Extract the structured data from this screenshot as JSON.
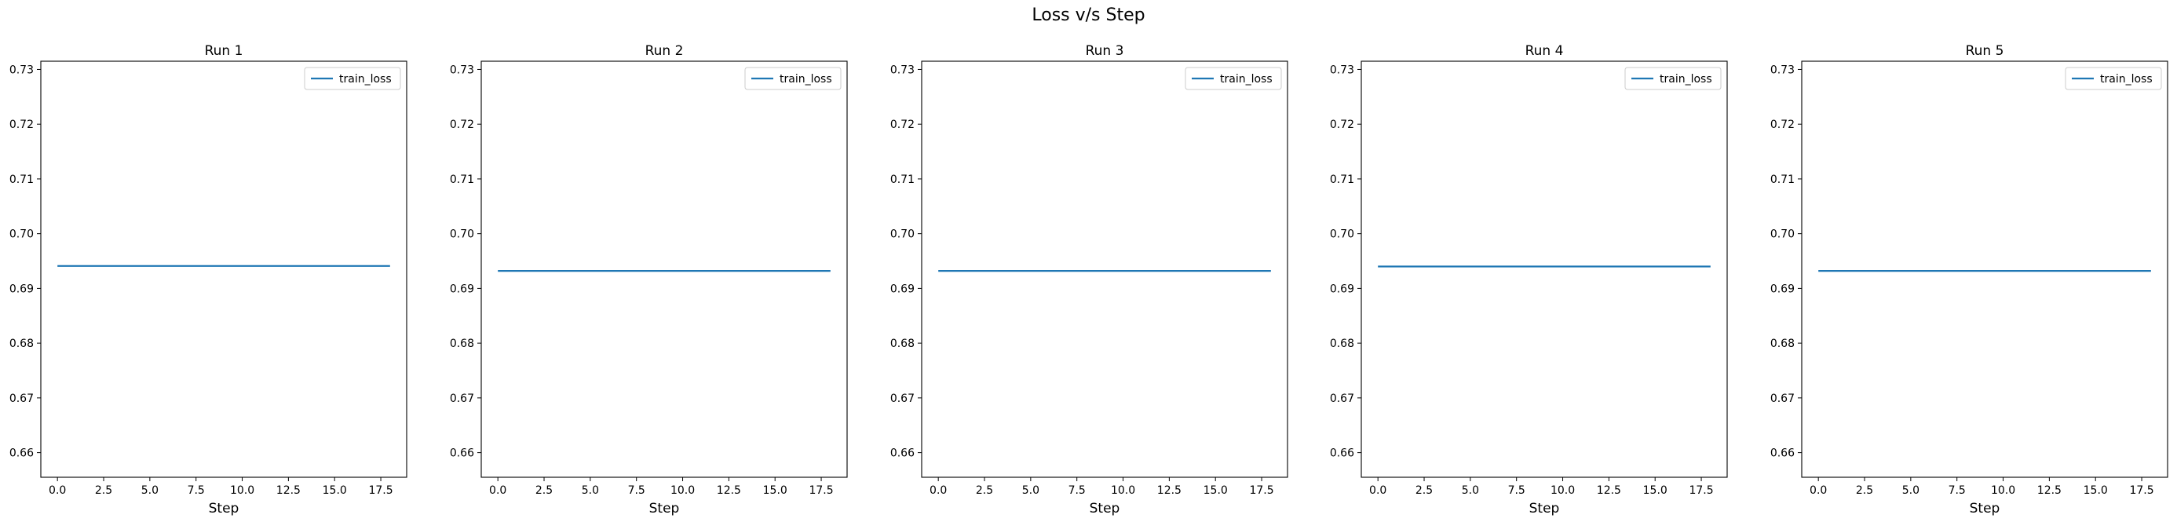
{
  "figure": {
    "title": "Loss v/s Step"
  },
  "colors": {
    "series": "#1f77b4",
    "axes": "#000000",
    "background": "#ffffff",
    "legend_border": "#cccccc"
  },
  "chart_data": [
    {
      "type": "line",
      "title": "Run 1",
      "xlabel": "Step",
      "ylabel": "",
      "xlim": [
        -0.9,
        18.9
      ],
      "ylim": [
        0.6555,
        0.7315
      ],
      "xticks": [
        "0.0",
        "2.5",
        "5.0",
        "7.5",
        "10.0",
        "12.5",
        "15.0",
        "17.5"
      ],
      "yticks": [
        "0.66",
        "0.67",
        "0.68",
        "0.69",
        "0.70",
        "0.71",
        "0.72",
        "0.73"
      ],
      "legend": "upper right",
      "grid": false,
      "series": [
        {
          "name": "train_loss",
          "color": "#1f77b4",
          "x": [
            0,
            18
          ],
          "y": [
            0.6941,
            0.6941
          ]
        }
      ]
    },
    {
      "type": "line",
      "title": "Run 2",
      "xlabel": "Step",
      "ylabel": "",
      "xlim": [
        -0.9,
        18.9
      ],
      "ylim": [
        0.6555,
        0.7315
      ],
      "xticks": [
        "0.0",
        "2.5",
        "5.0",
        "7.5",
        "10.0",
        "12.5",
        "15.0",
        "17.5"
      ],
      "yticks": [
        "0.66",
        "0.67",
        "0.68",
        "0.69",
        "0.70",
        "0.71",
        "0.72",
        "0.73"
      ],
      "legend": "upper right",
      "grid": false,
      "series": [
        {
          "name": "train_loss",
          "color": "#1f77b4",
          "x": [
            0,
            18
          ],
          "y": [
            0.6932,
            0.6932
          ]
        }
      ]
    },
    {
      "type": "line",
      "title": "Run 3",
      "xlabel": "Step",
      "ylabel": "",
      "xlim": [
        -0.9,
        18.9
      ],
      "ylim": [
        0.6555,
        0.7315
      ],
      "xticks": [
        "0.0",
        "2.5",
        "5.0",
        "7.5",
        "10.0",
        "12.5",
        "15.0",
        "17.5"
      ],
      "yticks": [
        "0.66",
        "0.67",
        "0.68",
        "0.69",
        "0.70",
        "0.71",
        "0.72",
        "0.73"
      ],
      "legend": "upper right",
      "grid": false,
      "series": [
        {
          "name": "train_loss",
          "color": "#1f77b4",
          "x": [
            0,
            18
          ],
          "y": [
            0.6932,
            0.6932
          ]
        }
      ]
    },
    {
      "type": "line",
      "title": "Run 4",
      "xlabel": "Step",
      "ylabel": "",
      "xlim": [
        -0.9,
        18.9
      ],
      "ylim": [
        0.6555,
        0.7315
      ],
      "xticks": [
        "0.0",
        "2.5",
        "5.0",
        "7.5",
        "10.0",
        "12.5",
        "15.0",
        "17.5"
      ],
      "yticks": [
        "0.66",
        "0.67",
        "0.68",
        "0.69",
        "0.70",
        "0.71",
        "0.72",
        "0.73"
      ],
      "legend": "upper right",
      "grid": false,
      "series": [
        {
          "name": "train_loss",
          "color": "#1f77b4",
          "x": [
            0,
            18
          ],
          "y": [
            0.694,
            0.694
          ]
        }
      ]
    },
    {
      "type": "line",
      "title": "Run 5",
      "xlabel": "Step",
      "ylabel": "",
      "xlim": [
        -0.9,
        18.9
      ],
      "ylim": [
        0.6555,
        0.7315
      ],
      "xticks": [
        "0.0",
        "2.5",
        "5.0",
        "7.5",
        "10.0",
        "12.5",
        "15.0",
        "17.5"
      ],
      "yticks": [
        "0.66",
        "0.67",
        "0.68",
        "0.69",
        "0.70",
        "0.71",
        "0.72",
        "0.73"
      ],
      "legend": "upper right",
      "grid": false,
      "series": [
        {
          "name": "train_loss",
          "color": "#1f77b4",
          "x": [
            0,
            18
          ],
          "y": [
            0.6932,
            0.6932
          ]
        }
      ]
    }
  ]
}
